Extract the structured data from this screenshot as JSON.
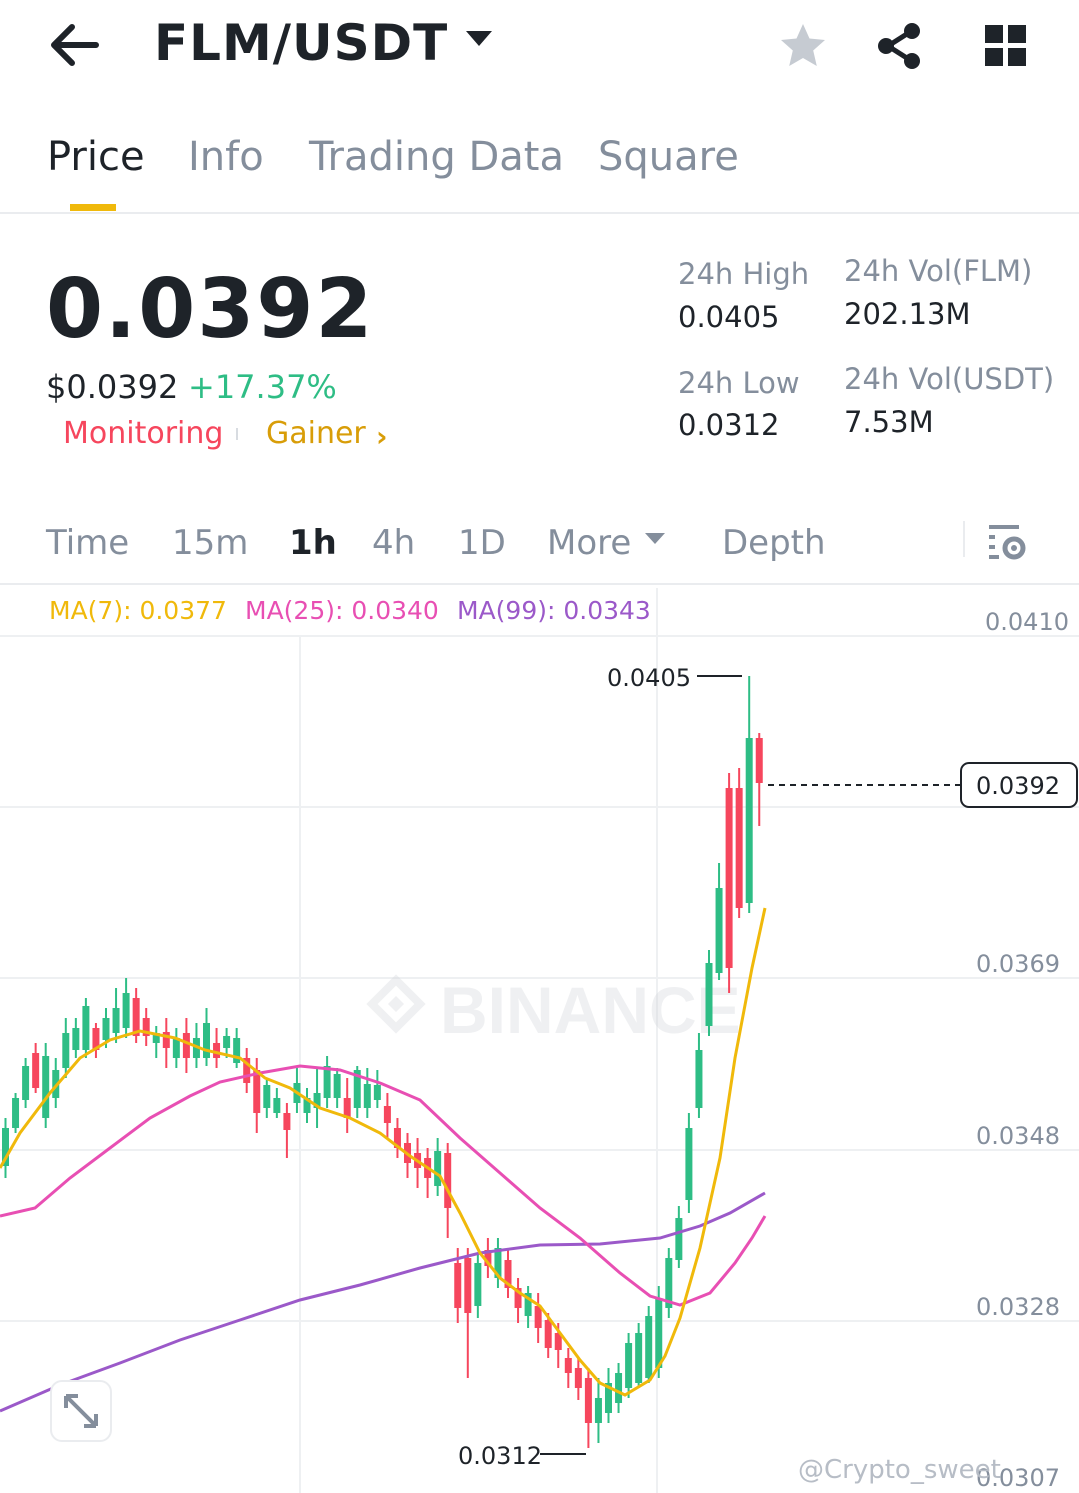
{
  "header": {
    "pair": "FLM/USDT"
  },
  "tabs": [
    {
      "label": "Price",
      "active": true
    },
    {
      "label": "Info",
      "active": false
    },
    {
      "label": "Trading Data",
      "active": false
    },
    {
      "label": "Square",
      "active": false
    }
  ],
  "ticker": {
    "last_price": "0.0392",
    "usd_price": "$0.0392",
    "change_pct": "+17.37%",
    "tags": {
      "monitoring": "Monitoring",
      "gainer": "Gainer"
    },
    "stats": {
      "high_label": "24h High",
      "high_value": "0.0405",
      "low_label": "24h Low",
      "low_value": "0.0312",
      "vol_base_label": "24h Vol(FLM)",
      "vol_base_value": "202.13M",
      "vol_quote_label": "24h Vol(USDT)",
      "vol_quote_value": "7.53M"
    }
  },
  "intervals": [
    {
      "label": "Time",
      "active": false
    },
    {
      "label": "15m",
      "active": false
    },
    {
      "label": "1h",
      "active": true
    },
    {
      "label": "4h",
      "active": false
    },
    {
      "label": "1D",
      "active": false
    },
    {
      "label": "More",
      "active": false
    },
    {
      "label": "Depth",
      "active": false
    }
  ],
  "ma_legend": {
    "ma7": "MA(7): 0.0377",
    "ma25": "MA(25): 0.0340",
    "ma99": "MA(99): 0.0343"
  },
  "chart": {
    "y_labels": [
      "0.0410",
      "0.0369",
      "0.0348",
      "0.0328",
      "0.0307"
    ],
    "current_price_label": "0.0392",
    "high_marker": "0.0405",
    "low_marker": "0.0312",
    "watermark": "BINANCE",
    "credit": "@Crypto_sweet"
  },
  "colors": {
    "up": "#2ebd85",
    "down": "#f6465d",
    "ma7": "#f0b90b",
    "ma25": "#e84fb3",
    "ma99": "#9b59c9",
    "accent": "#f0b90b"
  }
}
